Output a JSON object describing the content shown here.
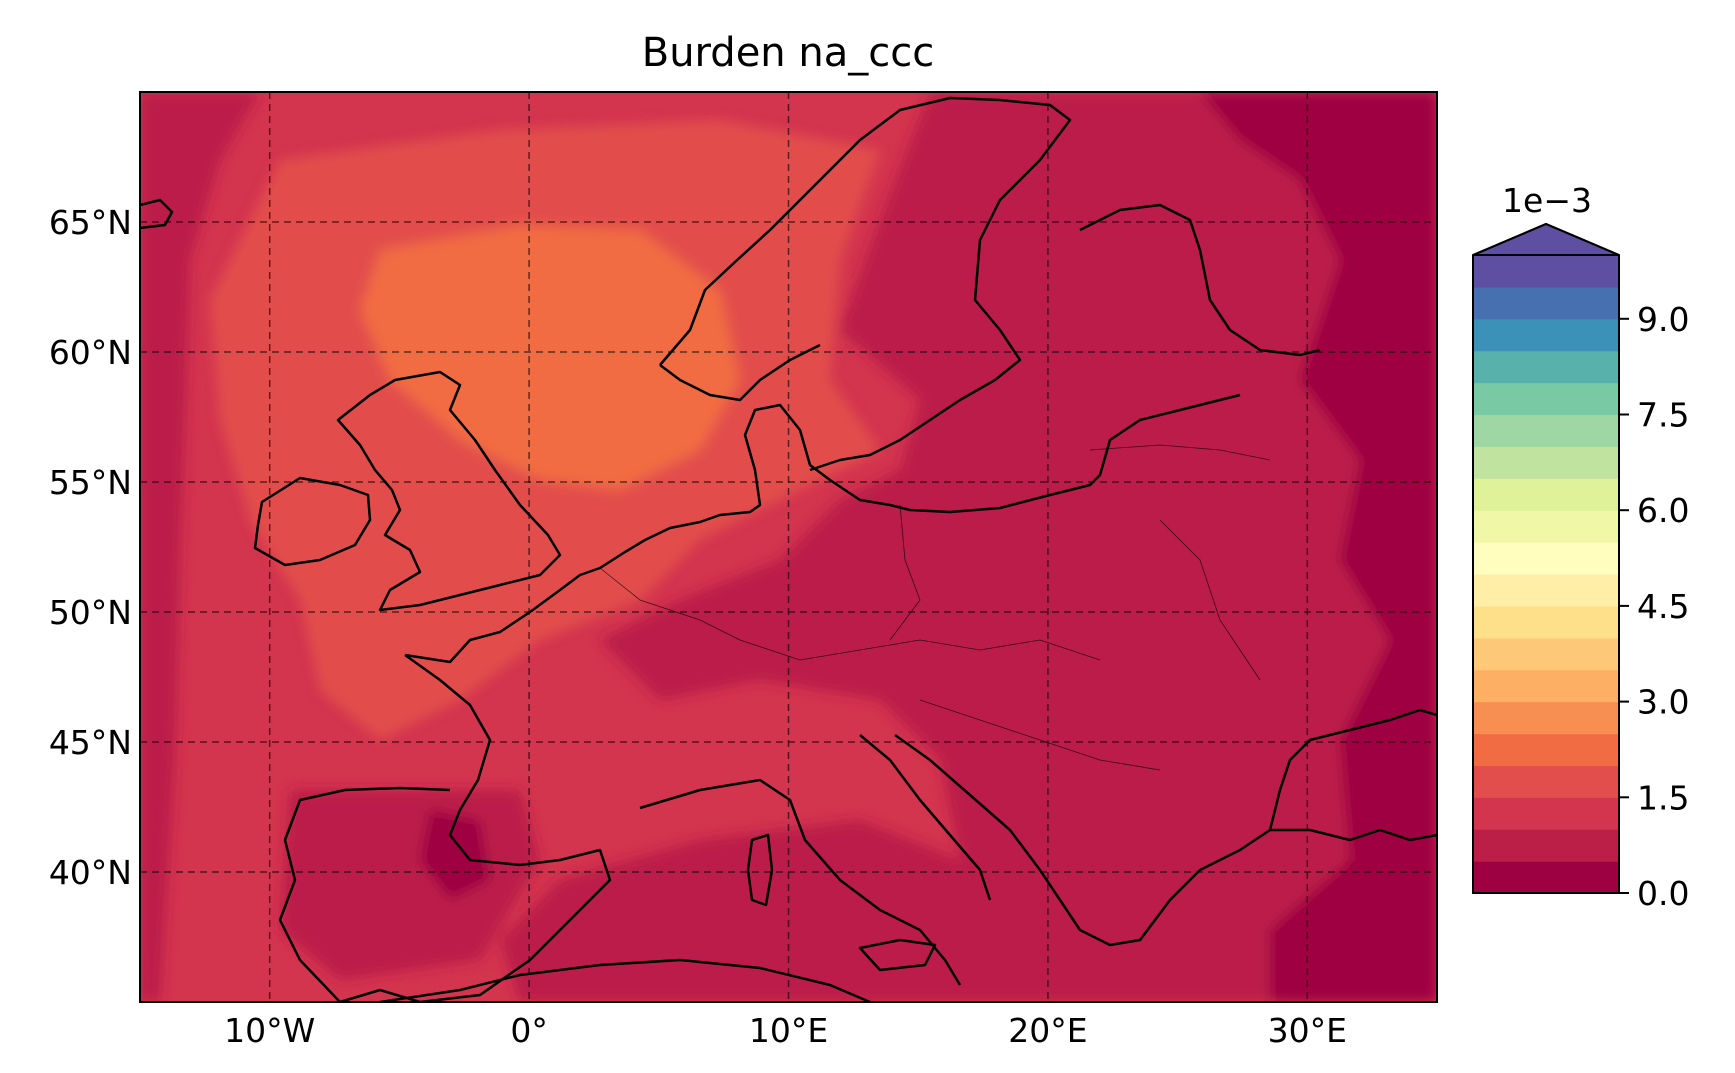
{
  "title": "Burden na_ccc",
  "map": {
    "lon_range": [
      -15,
      35
    ],
    "lat_range": [
      35,
      70
    ],
    "lon_ticks": [
      {
        "value": -10,
        "label": "10°W"
      },
      {
        "value": 0,
        "label": "0°"
      },
      {
        "value": 10,
        "label": "10°E"
      },
      {
        "value": 20,
        "label": "20°E"
      },
      {
        "value": 30,
        "label": "30°E"
      }
    ],
    "lat_ticks": [
      {
        "value": 65,
        "label": "65°N"
      },
      {
        "value": 60,
        "label": "60°N"
      },
      {
        "value": 55,
        "label": "55°N"
      },
      {
        "value": 50,
        "label": "50°N"
      },
      {
        "value": 45,
        "label": "45°N"
      },
      {
        "value": 40,
        "label": "40°N"
      }
    ],
    "gridlines": true,
    "gridline_style": "dashed",
    "background_color": "#be1e4a"
  },
  "colorbar": {
    "exponent_label": "1e−3",
    "extend": "max",
    "placement": "right",
    "levels": [
      0.0,
      0.5,
      1.0,
      1.5,
      2.0,
      2.5,
      3.0,
      3.5,
      4.0,
      4.5,
      5.0,
      5.5,
      6.0,
      6.5,
      7.0,
      7.5,
      8.0,
      8.5,
      9.0,
      9.5,
      10.0
    ],
    "colors": [
      "#9e0142",
      "#bb1f48",
      "#d3344e",
      "#e24e4b",
      "#f16c43",
      "#f88f52",
      "#fdb063",
      "#fdc878",
      "#fee08b",
      "#ffefa6",
      "#fffebe",
      "#f0f8a8",
      "#dff299",
      "#c0e4a0",
      "#9ed7a4",
      "#79c9a5",
      "#58b2ab",
      "#3b91b8",
      "#4670b0",
      "#5e4fa2"
    ],
    "over_color": "#5e4fa2",
    "tick_values": [
      0.0,
      1.5,
      3.0,
      4.5,
      6.0,
      7.5,
      9.0
    ],
    "tick_labels": [
      "0.0",
      "1.5",
      "3.0",
      "4.5",
      "6.0",
      "7.5",
      "9.0"
    ]
  }
}
